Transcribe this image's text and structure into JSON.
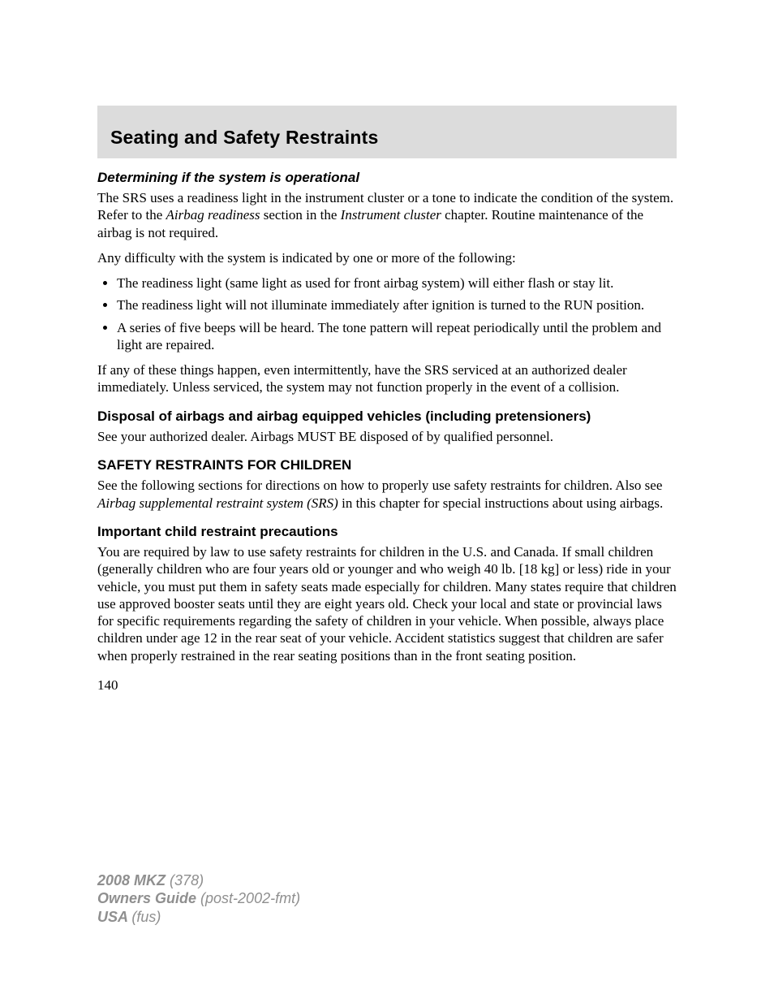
{
  "colors": {
    "header_band_bg": "#dcdcdc",
    "page_bg": "#ffffff",
    "text": "#000000",
    "footer_text": "#8f8f8f"
  },
  "typography": {
    "serif_family": "Georgia, Times New Roman, serif",
    "sans_family": "Arial, Helvetica, sans-serif",
    "body_size_pt": 13,
    "header_size_pt": 17,
    "subhead_size_pt": 13,
    "footer_size_pt": 14
  },
  "header": {
    "title": "Seating and Safety Restraints"
  },
  "sections": {
    "determining": {
      "heading": "Determining if the system is operational",
      "p1a": "The SRS uses a readiness light in the instrument cluster or a tone to indicate the condition of the system. Refer to the ",
      "p1_em1": "Airbag readiness",
      "p1b": " section in the ",
      "p1_em2": "Instrument cluster",
      "p1c": " chapter. Routine maintenance of the airbag is not required.",
      "p2": "Any difficulty with the system is indicated by one or more of the following:",
      "bullets": [
        "The readiness light (same light as used for front airbag system) will either flash or stay lit.",
        "The readiness light will not illuminate immediately after ignition is turned to the RUN position.",
        "A series of five beeps will be heard. The tone pattern will repeat periodically until the problem and light are repaired."
      ],
      "p3": "If any of these things happen, even intermittently, have the SRS serviced at an authorized dealer immediately. Unless serviced, the system may not function properly in the event of a collision."
    },
    "disposal": {
      "heading": "Disposal of airbags and airbag equipped vehicles (including pretensioners)",
      "p1": "See your authorized dealer. Airbags MUST BE disposed of by qualified personnel."
    },
    "children": {
      "heading": "SAFETY RESTRAINTS FOR CHILDREN",
      "p1a": "See the following sections for directions on how to properly use safety restraints for children. Also see ",
      "p1_em1": "Airbag supplemental restraint system (SRS)",
      "p1b": " in this chapter for special instructions about using airbags."
    },
    "precautions": {
      "heading": "Important child restraint precautions",
      "p1": "You are required by law to use safety restraints for children in the U.S. and Canada. If small children (generally children who are four years old or younger and who weigh 40 lb. [18 kg] or less) ride in your vehicle, you must put them in safety seats made especially for children. Many states require that children use approved booster seats until they are eight years old. Check your local and state or provincial laws for specific requirements regarding the safety of children in your vehicle. When possible, always place children under age 12 in the rear seat of your vehicle. Accident statistics suggest that children are safer when properly restrained in the rear seating positions than in the front seating position."
    }
  },
  "page_number": "140",
  "footer": {
    "l1a": "2008 MKZ ",
    "l1b": "(378)",
    "l2a": "Owners Guide ",
    "l2b": "(post-2002-fmt)",
    "l3a": "USA ",
    "l3b": "(fus)"
  }
}
